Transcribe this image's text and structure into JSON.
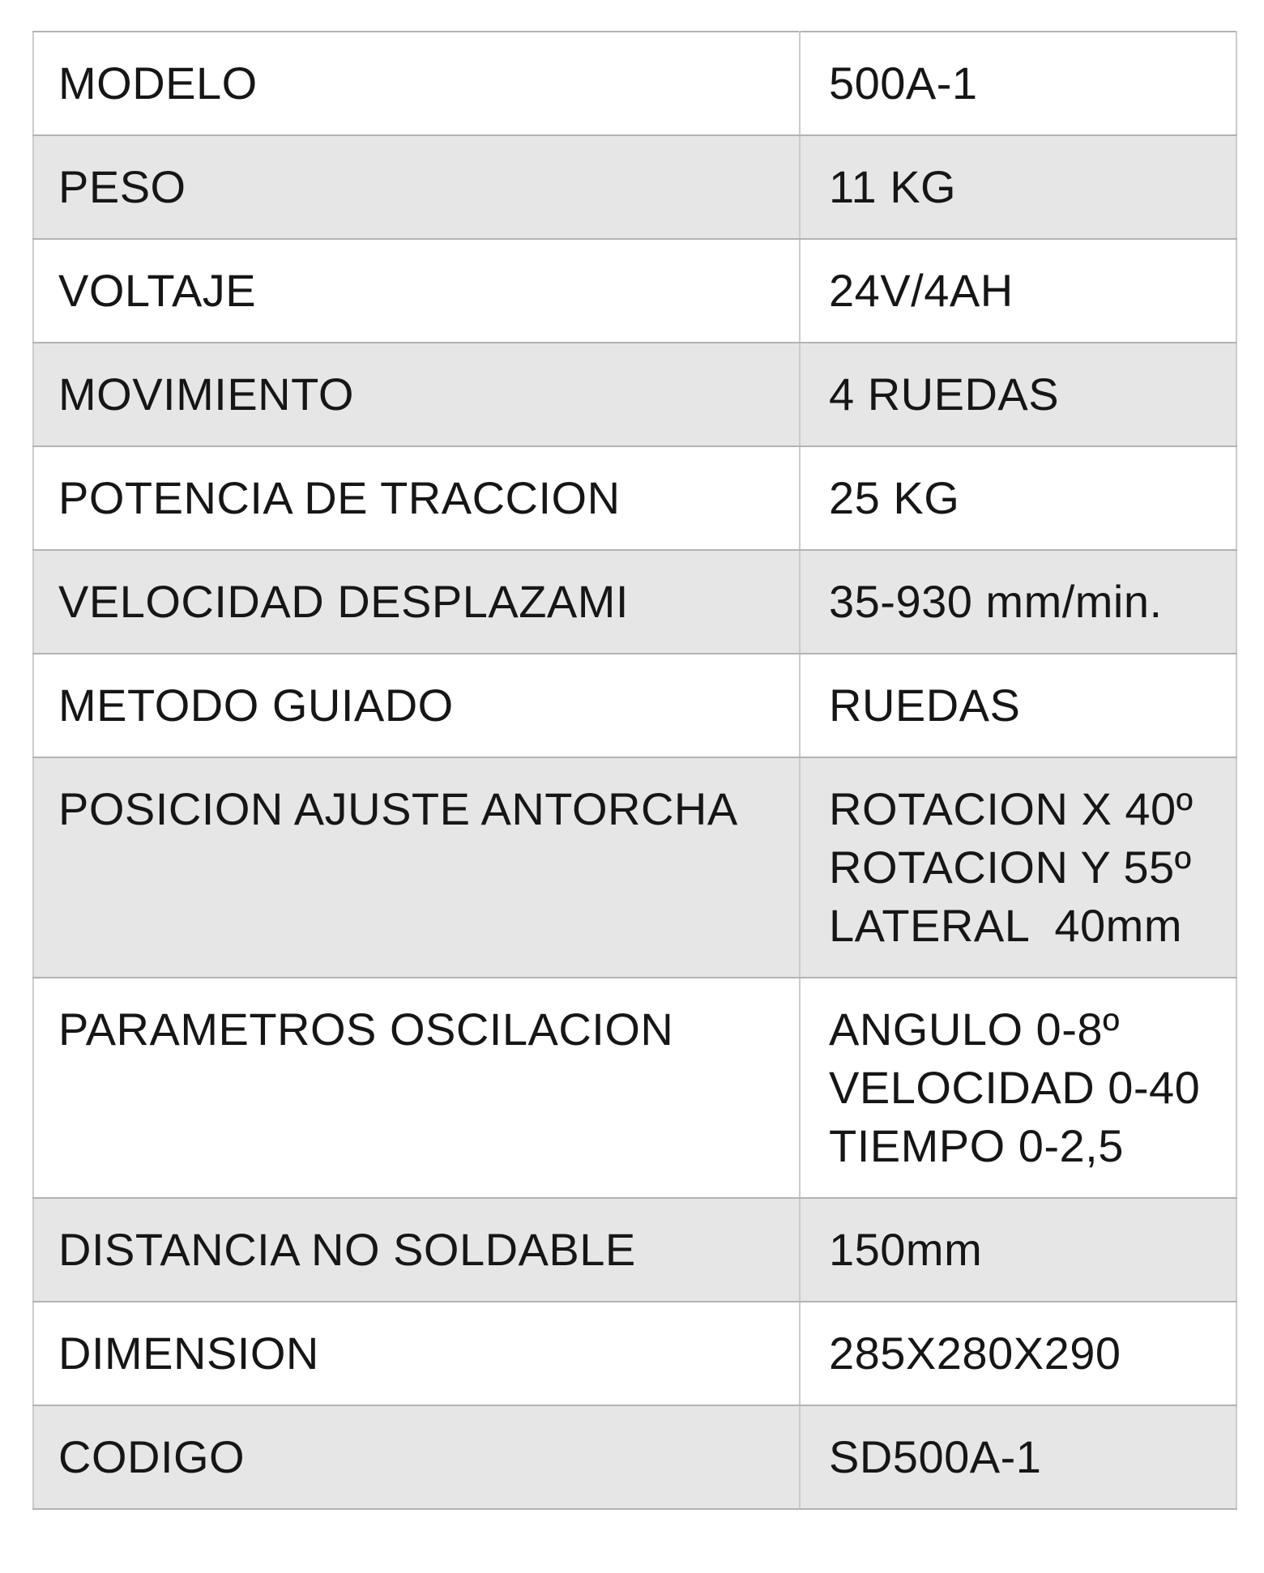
{
  "table": {
    "rows": [
      {
        "label": "MODELO",
        "value": "500A-1"
      },
      {
        "label": "PESO",
        "value": "11 KG"
      },
      {
        "label": "VOLTAJE",
        "value": "24V/4AH"
      },
      {
        "label": "MOVIMIENTO",
        "value": "4 RUEDAS"
      },
      {
        "label": "POTENCIA DE TRACCION",
        "value": "25 KG"
      },
      {
        "label": "VELOCIDAD DESPLAZAMI",
        "value": "35-930 mm/min."
      },
      {
        "label": "METODO GUIADO",
        "value": "RUEDAS"
      },
      {
        "label": "POSICION AJUSTE ANTORCHA",
        "value": "ROTACION X 40º\nROTACION Y 55º\nLATERAL  40mm"
      },
      {
        "label": "PARAMETROS OSCILACION",
        "value": "ANGULO 0-8º\nVELOCIDAD 0-40\nTIEMPO 0-2,5"
      },
      {
        "label": "DISTANCIA NO SOLDABLE",
        "value": "150mm"
      },
      {
        "label": "DIMENSION",
        "value": "285X280X290"
      },
      {
        "label": "CODIGO",
        "value": "SD500A-1"
      }
    ],
    "colors": {
      "alt_row_bg": "#e6e6e6",
      "row_bg": "#ffffff",
      "border_horizontal": "#b3b3b3",
      "border_vertical": "#cbcbcb",
      "text": "#161616"
    }
  }
}
